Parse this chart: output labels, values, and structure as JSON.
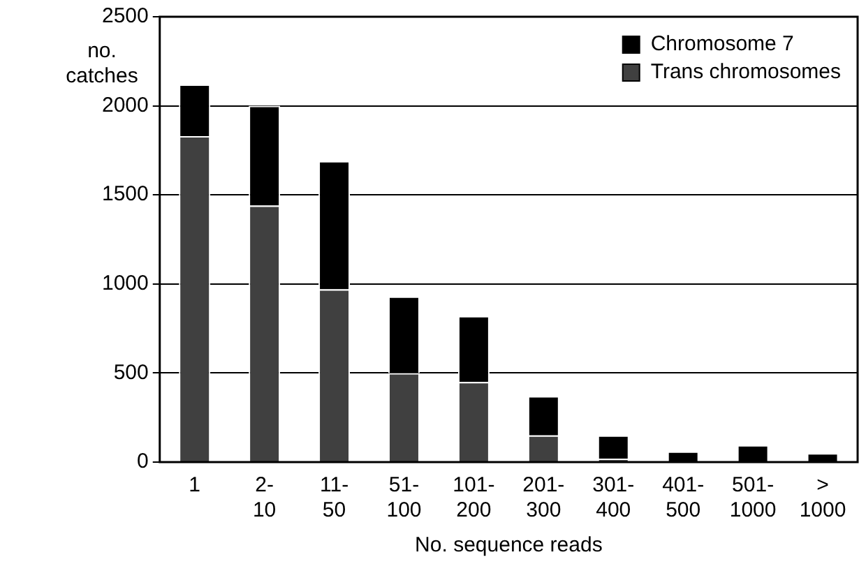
{
  "chart_data": {
    "type": "bar",
    "stacked": true,
    "xlabel": "No. sequence reads",
    "ylabel": "no. catches",
    "categories": [
      "1",
      "2- 10",
      "11- 50",
      "51- 100",
      "101- 200",
      "201- 300",
      "301- 400",
      "401- 500",
      "501- 1000",
      "> 1000"
    ],
    "series": [
      {
        "name": "Trans chromosomes",
        "color": "#404040",
        "values": [
          1830,
          1440,
          970,
          500,
          450,
          150,
          20,
          0,
          0,
          0
        ]
      },
      {
        "name": "Chromosome 7",
        "color": "#000000",
        "values": [
          290,
          560,
          720,
          430,
          370,
          220,
          130,
          60,
          95,
          50
        ]
      }
    ],
    "ylim": [
      0,
      2500
    ],
    "yticks": [
      0,
      500,
      1000,
      1500,
      2000,
      2500
    ],
    "grid": "y",
    "legend": "top right"
  }
}
